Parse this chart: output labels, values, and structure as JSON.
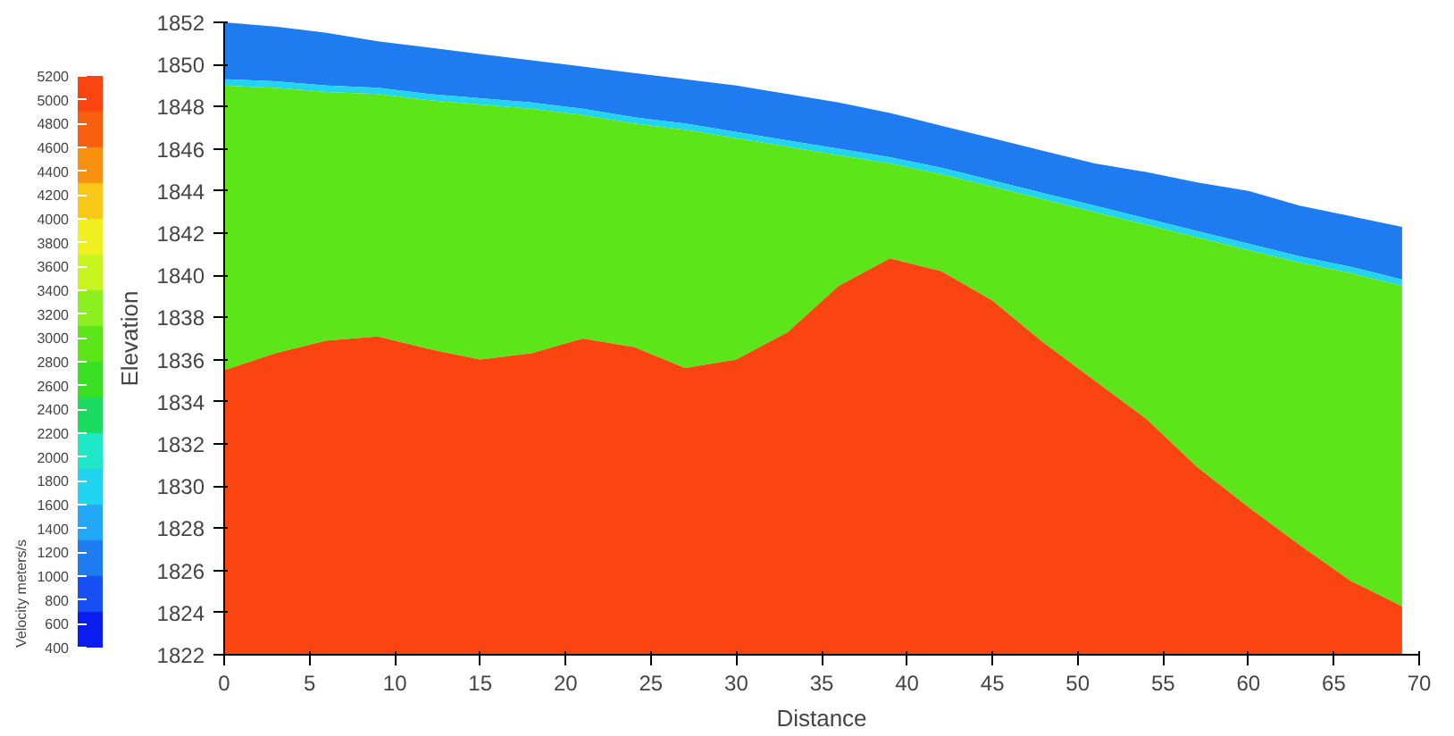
{
  "chart_data": {
    "type": "area",
    "xlabel": "Distance",
    "ylabel": "Elevation",
    "clabel": "Velocity meters/s",
    "xlim": [
      0,
      70
    ],
    "ylim": [
      1822,
      1852
    ],
    "xticks": [
      0,
      5,
      10,
      15,
      20,
      25,
      30,
      35,
      40,
      45,
      50,
      55,
      60,
      65,
      70
    ],
    "yticks": [
      1822,
      1824,
      1826,
      1828,
      1830,
      1832,
      1834,
      1836,
      1838,
      1840,
      1842,
      1844,
      1846,
      1848,
      1850,
      1852
    ],
    "clim": [
      400,
      5200
    ],
    "cticks": [
      400,
      600,
      800,
      1000,
      1200,
      1400,
      1600,
      1800,
      2000,
      2200,
      2400,
      2600,
      2800,
      3000,
      3200,
      3400,
      3600,
      3800,
      4000,
      4200,
      4400,
      4600,
      4800,
      5000,
      5200
    ],
    "grid": false,
    "x": [
      0,
      3,
      6,
      9,
      12,
      15,
      18,
      21,
      24,
      27,
      30,
      33,
      36,
      39,
      42,
      45,
      48,
      51,
      54,
      57,
      60,
      63,
      66,
      69
    ],
    "series": [
      {
        "color": "#1f7bf0",
        "values": [
          1852,
          1851.8,
          1851.5,
          1851.1,
          1850.8,
          1850.5,
          1850.2,
          1849.9,
          1849.6,
          1849.3,
          1849,
          1848.6,
          1848.2,
          1847.7,
          1847.1,
          1846.5,
          1845.9,
          1845.3,
          1844.9,
          1844.4,
          1844,
          1843.3,
          1842.8,
          1842.3
        ]
      },
      {
        "color": "#22d4f0",
        "values": [
          1849.3,
          1849.2,
          1849.0,
          1848.9,
          1848.6,
          1848.4,
          1848.2,
          1847.9,
          1847.5,
          1847.2,
          1846.8,
          1846.4,
          1846.0,
          1845.6,
          1845.1,
          1844.5,
          1843.9,
          1843.3,
          1842.7,
          1842.1,
          1841.5,
          1840.9,
          1840.4,
          1839.8
        ]
      },
      {
        "color": "#5ce619",
        "values": [
          1849,
          1848.9,
          1848.7,
          1848.6,
          1848.3,
          1848.1,
          1847.9,
          1847.6,
          1847.2,
          1846.9,
          1846.5,
          1846.1,
          1845.7,
          1845.3,
          1844.8,
          1844.2,
          1843.6,
          1843.0,
          1842.4,
          1841.8,
          1841.2,
          1840.6,
          1840.1,
          1839.5
        ]
      },
      {
        "color": "#fb4510",
        "values": [
          1835.5,
          1836.3,
          1836.9,
          1837.1,
          1836.5,
          1836,
          1836.3,
          1837,
          1836.6,
          1835.6,
          1836,
          1837.3,
          1839.5,
          1840.8,
          1840.2,
          1838.8,
          1836.8,
          1835,
          1833.2,
          1830.9,
          1829,
          1827.2,
          1825.5,
          1824.3
        ]
      }
    ]
  }
}
